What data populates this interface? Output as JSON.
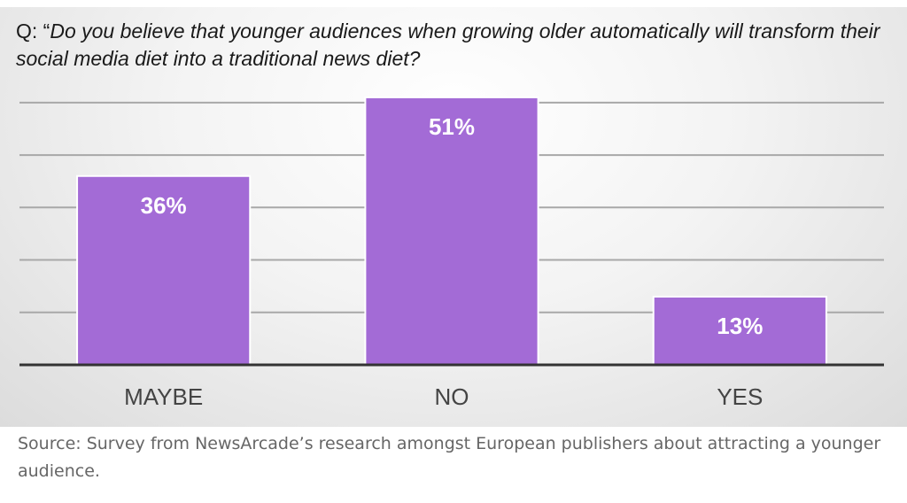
{
  "question": {
    "prefix": "Q: “",
    "text": "Do you believe that younger audiences when growing older automatically will transform their social media diet into a traditional news diet?"
  },
  "source_note": "Source: Survey from NewsArcade’s research amongst European publishers about attracting a younger audience.",
  "chart_data": {
    "type": "bar",
    "categories": [
      "MAYBE",
      "NO",
      "YES"
    ],
    "values": [
      36,
      51,
      13
    ],
    "data_labels": [
      "36%",
      "51%",
      "13%"
    ],
    "ylim": [
      0,
      52
    ],
    "grid": true,
    "bar_color": "#a36bd6",
    "bar_edge_color": "#ffffff",
    "gridline_color": "#a8a8a8",
    "axis_color": "#333333",
    "label_color": "#ffffff",
    "tick_label_color": "#444444"
  }
}
